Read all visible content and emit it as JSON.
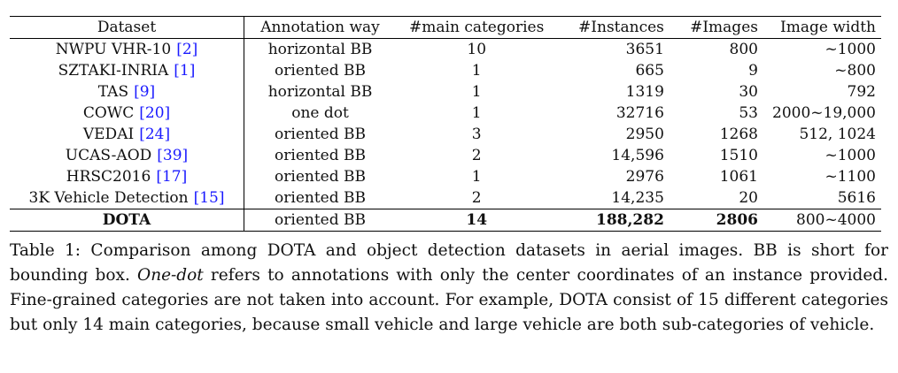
{
  "table": {
    "headers": {
      "dataset": "Dataset",
      "annotation": "Annotation way",
      "categories": "#main categories",
      "instances": "#Instances",
      "images": "#Images",
      "width": "Image width"
    },
    "rows": [
      {
        "dataset": "NWPU VHR-10",
        "ref": "[2]",
        "annotation": "horizontal BB",
        "categories": "10",
        "instances": "3651",
        "images": "800",
        "width": "~1000"
      },
      {
        "dataset": "SZTAKI-INRIA",
        "ref": "[1]",
        "annotation": "oriented BB",
        "categories": "1",
        "instances": "665",
        "images": "9",
        "width": "~800"
      },
      {
        "dataset": "TAS",
        "ref": "[9]",
        "annotation": "horizontal BB",
        "categories": "1",
        "instances": "1319",
        "images": "30",
        "width": "792"
      },
      {
        "dataset": "COWC",
        "ref": "[20]",
        "annotation": "one dot",
        "categories": "1",
        "instances": "32716",
        "images": "53",
        "width": "2000~19,000"
      },
      {
        "dataset": "VEDAI",
        "ref": "[24]",
        "annotation": "oriented BB",
        "categories": "3",
        "instances": "2950",
        "images": "1268",
        "width": "512, 1024"
      },
      {
        "dataset": "UCAS-AOD",
        "ref": "[39]",
        "annotation": "oriented BB",
        "categories": "2",
        "instances": "14,596",
        "images": "1510",
        "width": "~1000"
      },
      {
        "dataset": "HRSC2016",
        "ref": "[17]",
        "annotation": "oriented BB",
        "categories": "1",
        "instances": "2976",
        "images": "1061",
        "width": "~1100"
      },
      {
        "dataset": "3K Vehicle Detection",
        "ref": "[15]",
        "annotation": "oriented BB",
        "categories": "2",
        "instances": "14,235",
        "images": "20",
        "width": "5616"
      }
    ],
    "final": {
      "dataset": "DOTA",
      "annotation": "oriented BB",
      "categories": "14",
      "instances": "188,282",
      "images": "2806",
      "width": "800~4000"
    }
  },
  "caption": {
    "part1": "Table 1: Comparison among DOTA and object detection datasets in aerial images. BB is short for bounding box. ",
    "emph": "One-dot",
    "part2": " refers to annotations with only the center coordinates of an instance provided. Fine-grained categories are not taken into account. For example, DOTA consist of 15 different categories but only 14 main categories, because small vehicle and large vehicle are both sub-categories of vehicle."
  },
  "colors": {
    "reference_link": "#1a1aff"
  }
}
